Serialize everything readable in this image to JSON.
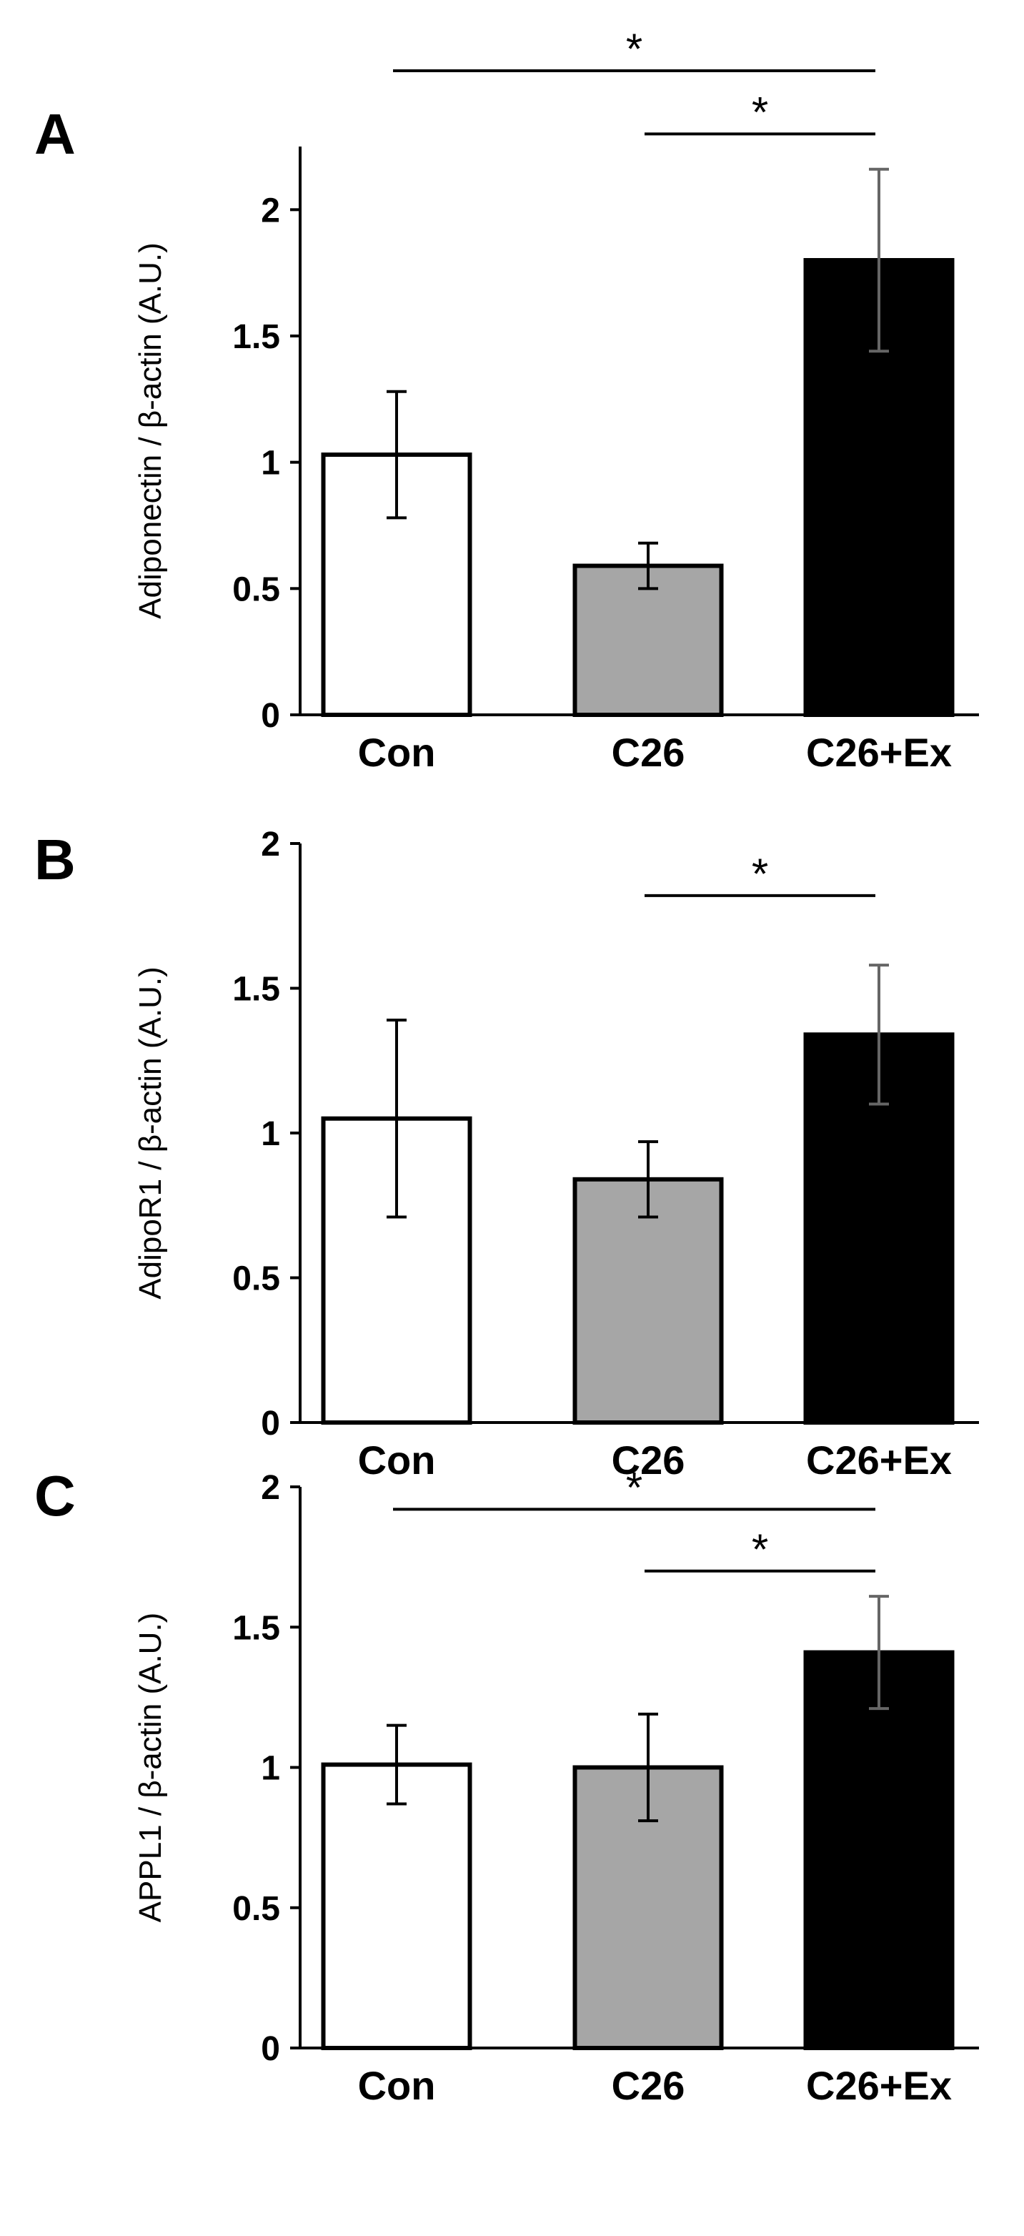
{
  "chart_data": [
    {
      "type": "bar",
      "panel_label": "A",
      "ylabel": "Adiponectin / β-actin (A.U.)",
      "categories": [
        "Con",
        "C26",
        "C26+Ex"
      ],
      "values": [
        1.03,
        0.59,
        1.8
      ],
      "errors": [
        0.25,
        0.09,
        0.36
      ],
      "bar_colors": [
        "#ffffff",
        "#a6a6a6",
        "#000000"
      ],
      "ylim": [
        0,
        2.25
      ],
      "yticks": [
        0,
        0.5,
        1,
        1.5,
        2
      ],
      "ytick_labels": [
        "0",
        "0.5",
        "1",
        "1.5",
        "2"
      ],
      "significance": [
        {
          "from": "Con",
          "to": "C26+Ex",
          "label": "*",
          "level": 2.55
        },
        {
          "from": "C26",
          "to": "C26+Ex",
          "label": "*",
          "level": 2.3
        }
      ]
    },
    {
      "type": "bar",
      "panel_label": "B",
      "ylabel": "AdipoR1 / β-actin (A.U.)",
      "categories": [
        "Con",
        "C26",
        "C26+Ex"
      ],
      "values": [
        1.05,
        0.84,
        1.34
      ],
      "errors": [
        0.34,
        0.13,
        0.24
      ],
      "bar_colors": [
        "#ffffff",
        "#a6a6a6",
        "#000000"
      ],
      "ylim": [
        0,
        2
      ],
      "yticks": [
        0,
        0.5,
        1,
        1.5,
        2
      ],
      "ytick_labels": [
        "0",
        "0.5",
        "1",
        "1.5",
        "2"
      ],
      "significance": [
        {
          "from": "C26",
          "to": "C26+Ex",
          "label": "*",
          "level": 1.82
        }
      ]
    },
    {
      "type": "bar",
      "panel_label": "C",
      "ylabel": "APPL1 / β-actin (A.U.)",
      "categories": [
        "Con",
        "C26",
        "C26+Ex"
      ],
      "values": [
        1.01,
        1.0,
        1.41
      ],
      "errors": [
        0.14,
        0.19,
        0.2
      ],
      "bar_colors": [
        "#ffffff",
        "#a6a6a6",
        "#000000"
      ],
      "ylim": [
        0,
        2
      ],
      "yticks": [
        0,
        0.5,
        1,
        1.5,
        2
      ],
      "ytick_labels": [
        "0",
        "0.5",
        "1",
        "1.5",
        "2"
      ],
      "significance": [
        {
          "from": "Con",
          "to": "C26+Ex",
          "label": "*",
          "level": 1.92
        },
        {
          "from": "C26",
          "to": "C26+Ex",
          "label": "*",
          "level": 1.7
        }
      ]
    }
  ]
}
